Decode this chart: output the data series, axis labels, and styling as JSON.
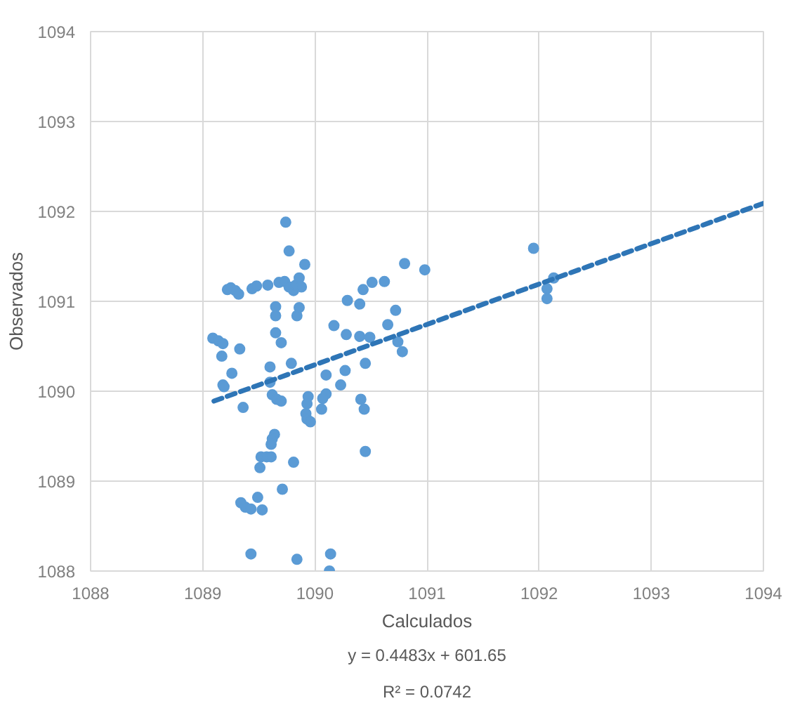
{
  "chart_data": {
    "type": "scatter",
    "xlabel": "Calculados",
    "ylabel": "Observados",
    "annotations": [
      "y = 0.4483x + 601.65",
      "R² = 0.0742"
    ],
    "xlim": [
      1088,
      1094
    ],
    "ylim": [
      1088,
      1094
    ],
    "xticks": [
      1088,
      1089,
      1090,
      1091,
      1092,
      1093,
      1094
    ],
    "yticks": [
      1088,
      1089,
      1090,
      1091,
      1092,
      1093,
      1094
    ],
    "grid": true,
    "series": [
      {
        "marker": "circle",
        "color": "#5b9bd5",
        "x": [
          1089.74,
          1089.77,
          1089.91,
          1089.22,
          1089.25,
          1089.29,
          1089.32,
          1089.44,
          1089.48,
          1089.58,
          1089.68,
          1089.73,
          1089.77,
          1089.81,
          1089.83,
          1089.86,
          1089.88,
          1089.65,
          1089.65,
          1089.65,
          1089.7,
          1089.86,
          1089.84,
          1090.29,
          1090.17,
          1089.09,
          1089.14,
          1089.18,
          1089.17,
          1089.33,
          1090.28,
          1090.4,
          1089.79,
          1089.6,
          1089.26,
          1089.18,
          1090.27,
          1090.45,
          1089.6,
          1090.1,
          1090.23,
          1089.19,
          1089.62,
          1089.66,
          1089.7,
          1089.94,
          1089.93,
          1090.1,
          1090.07,
          1090.06,
          1089.36,
          1089.92,
          1089.93,
          1089.96,
          1090.41,
          1090.44,
          1089.64,
          1089.62,
          1089.61,
          1089.52,
          1089.57,
          1089.61,
          1089.51,
          1089.81,
          1090.45,
          1089.71,
          1089.49,
          1089.34,
          1089.38,
          1089.43,
          1089.53,
          1089.43,
          1089.84,
          1090.14,
          1090.13,
          1090.8,
          1090.98,
          1091.95,
          1092.07,
          1092.07,
          1092.13,
          1090.49,
          1090.65,
          1090.72,
          1090.74,
          1090.78,
          1090.62,
          1090.51,
          1090.43,
          1090.4
        ],
        "values": [
          1091.88,
          1091.56,
          1091.41,
          1091.13,
          1091.15,
          1091.12,
          1091.08,
          1091.14,
          1091.17,
          1091.18,
          1091.21,
          1091.22,
          1091.16,
          1091.12,
          1091.18,
          1091.26,
          1091.16,
          1090.94,
          1090.84,
          1090.65,
          1090.54,
          1090.93,
          1090.84,
          1091.01,
          1090.73,
          1090.59,
          1090.56,
          1090.53,
          1090.39,
          1090.47,
          1090.63,
          1090.61,
          1090.31,
          1090.27,
          1090.2,
          1090.07,
          1090.23,
          1090.31,
          1090.1,
          1090.18,
          1090.07,
          1090.05,
          1089.96,
          1089.91,
          1089.89,
          1089.94,
          1089.86,
          1089.97,
          1089.92,
          1089.8,
          1089.82,
          1089.75,
          1089.69,
          1089.66,
          1089.91,
          1089.8,
          1089.52,
          1089.47,
          1089.41,
          1089.27,
          1089.27,
          1089.27,
          1089.15,
          1089.21,
          1089.33,
          1088.91,
          1088.82,
          1088.76,
          1088.71,
          1088.69,
          1088.68,
          1088.19,
          1088.13,
          1088.19,
          1088.0,
          1091.42,
          1091.35,
          1091.59,
          1091.14,
          1091.03,
          1091.26,
          1090.6,
          1090.74,
          1090.9,
          1090.55,
          1090.44,
          1091.22,
          1091.21,
          1091.13,
          1090.97
        ]
      },
      {
        "type": "line",
        "color": "#2e75b6",
        "line_style": "dashed",
        "x": [
          1089.1,
          1094
        ],
        "values": [
          1089.89,
          1092.09
        ]
      }
    ]
  }
}
